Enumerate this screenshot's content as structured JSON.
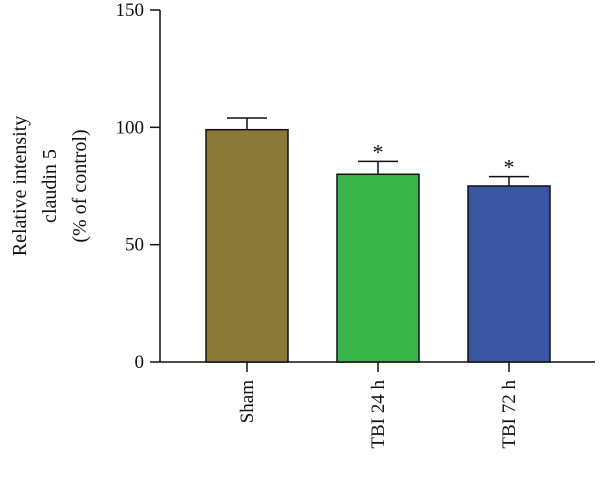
{
  "chart_data": {
    "type": "bar",
    "title": "",
    "xlabel": "",
    "ylabel_lines": [
      "Relative intensity",
      "claudin 5",
      "(% of control)"
    ],
    "ylim": [
      0,
      150
    ],
    "yticks": [
      0,
      50,
      100,
      150
    ],
    "categories": [
      "Sham",
      "TBI 24 h",
      "TBI 72 h"
    ],
    "values": [
      99,
      80,
      75
    ],
    "errors": [
      5,
      5.5,
      4
    ],
    "significance": [
      "",
      "*",
      "*"
    ],
    "bar_colors": [
      "#8a7a3a",
      "#39b54a",
      "#3a55a4"
    ],
    "grid": false,
    "legend": "none"
  }
}
